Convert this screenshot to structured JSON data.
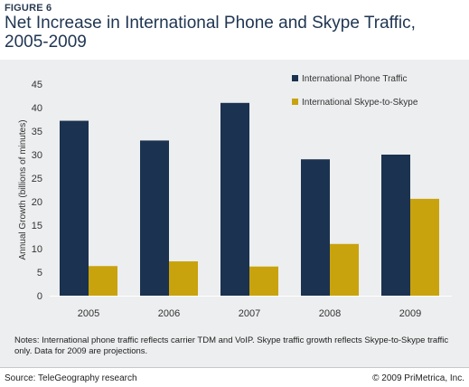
{
  "figure_label": "FIGURE 6",
  "title": "Net Increase in International Phone and Skype Traffic, 2005-2009",
  "notes": "Notes: International phone traffic reflects carrier TDM and VoIP. Skype traffic growth reflects Skype-to-Skype traffic only. Data for 2009 are projections.",
  "source": "Source: TeleGeography research",
  "copyright": "© 2009 PriMetrica, Inc.",
  "chart_data": {
    "type": "bar",
    "categories": [
      "2005",
      "2006",
      "2007",
      "2008",
      "2009"
    ],
    "series": [
      {
        "name": "International Phone Traffic",
        "values": [
          37.2,
          33,
          41,
          29,
          30
        ],
        "color": "#1b3250"
      },
      {
        "name": "International Skype-to-Skype",
        "values": [
          6.3,
          7.3,
          6.2,
          11,
          20.6
        ],
        "color": "#c9a30d"
      }
    ],
    "ylabel": "Annual Growth (billions of minutes)",
    "ylim": [
      0,
      45
    ],
    "yticks": [
      "0",
      "5",
      "10",
      "15",
      "20",
      "25",
      "30",
      "35",
      "40",
      "45"
    ],
    "grid": false,
    "legend_position": "top-right"
  }
}
